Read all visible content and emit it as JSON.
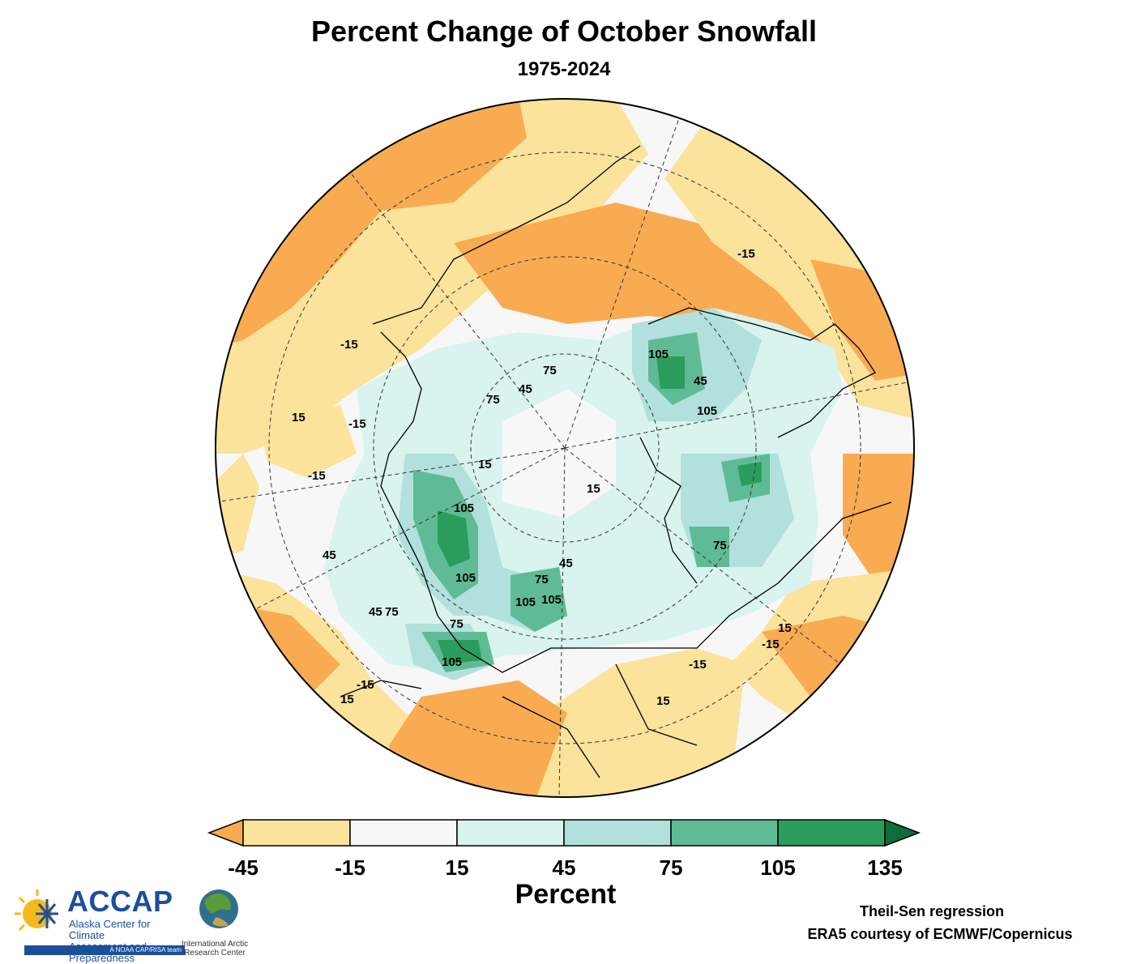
{
  "header": {
    "title": "Percent Change of October Snowfall",
    "subtitle": "1975-2024"
  },
  "map": {
    "projection": "north-polar-stereographic",
    "contour_labels": [
      "-15",
      "15",
      "45",
      "75",
      "105"
    ]
  },
  "colorbar": {
    "title": "Percent",
    "ticks": [
      "-45",
      "-15",
      "15",
      "45",
      "75",
      "105",
      "135"
    ],
    "colors": {
      "below": "#f9ab52",
      "n45_n15": "#fbe39b",
      "n15_15": "#f7f7f7",
      "p15_45": "#d9f3ee",
      "p45_75": "#b2e0dc",
      "p75_105": "#5fbb95",
      "p105_135": "#2a9d5c",
      "above": "#0d6e3a"
    }
  },
  "credits": {
    "method": "Theil-Sen regression",
    "source": "ERA5 courtesy of ECMWF/Copernicus"
  },
  "logos": {
    "accap_name": "ACCAP",
    "accap_line1": "Alaska Center for Climate",
    "accap_line2": "Assessment and Preparedness",
    "accap_tag": "A NOAA CAP/RISA team",
    "iarc_line1": "International Arctic",
    "iarc_line2": "Research Center"
  }
}
